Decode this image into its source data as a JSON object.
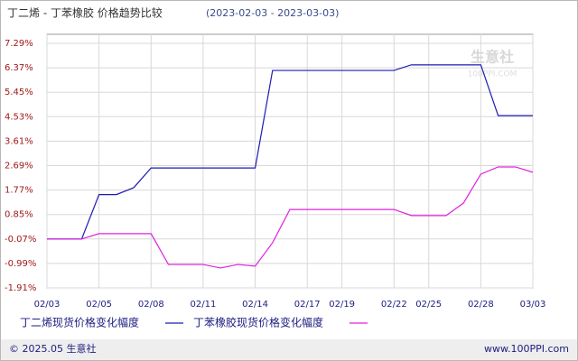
{
  "chart_data": {
    "type": "line",
    "title": "丁二烯 - 丁苯橡胶 价格趋势比较",
    "subtitle": "(2023-02-03 - 2023-03-03)",
    "watermark": "生意社",
    "watermark_sub": "100PPI.COM",
    "footer_left": "© 2025.05 生意社",
    "footer_right": "www.100PPI.com",
    "categories": [
      "02/03",
      null,
      null,
      "02/05",
      null,
      null,
      "02/08",
      null,
      null,
      "02/11",
      null,
      null,
      "02/14",
      null,
      null,
      "02/17",
      null,
      "02/19",
      null,
      null,
      "02/22",
      null,
      "02/25",
      null,
      null,
      "02/28",
      null,
      null,
      "03/03"
    ],
    "series": [
      {
        "name": "丁二烯现货价格变化幅度",
        "color": "#1c1cb4",
        "values": [
          -0.07,
          -0.07,
          -0.07,
          1.6,
          1.6,
          1.86,
          2.6,
          2.6,
          2.6,
          2.6,
          2.6,
          2.6,
          2.6,
          6.27,
          6.27,
          6.27,
          6.27,
          6.27,
          6.27,
          6.27,
          6.27,
          6.48,
          6.48,
          6.48,
          6.48,
          6.48,
          4.57,
          4.57,
          4.57
        ]
      },
      {
        "name": "丁苯橡胶现货价格变化幅度",
        "color": "#e020e0",
        "values": [
          -0.07,
          -0.07,
          -0.07,
          0.13,
          0.13,
          0.13,
          0.13,
          -1.03,
          -1.03,
          -1.03,
          -1.16,
          -1.03,
          -1.09,
          -0.21,
          1.04,
          1.04,
          1.04,
          1.04,
          1.04,
          1.04,
          1.04,
          0.81,
          0.81,
          0.81,
          1.28,
          2.37,
          2.64,
          2.64,
          2.44
        ]
      }
    ],
    "ylim": [
      -1.91,
      7.29
    ],
    "yticks": [
      {
        "value": 7.29,
        "label": "7.29%"
      },
      {
        "value": 6.37,
        "label": "6.37%"
      },
      {
        "value": 5.45,
        "label": "5.45%"
      },
      {
        "value": 4.53,
        "label": "4.53%"
      },
      {
        "value": 3.61,
        "label": "3.61%"
      },
      {
        "value": 2.69,
        "label": "2.69%"
      },
      {
        "value": 1.77,
        "label": "1.77%"
      },
      {
        "value": 0.85,
        "label": "0.85%"
      },
      {
        "value": -0.07,
        "label": "-0.07%"
      },
      {
        "value": -0.99,
        "label": "-0.99%"
      },
      {
        "value": -1.91,
        "label": "-1.91%"
      }
    ],
    "grid": true
  }
}
